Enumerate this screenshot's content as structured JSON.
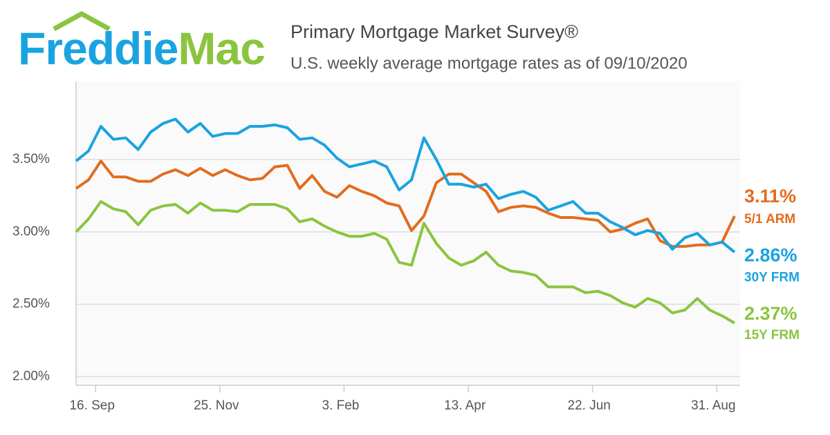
{
  "logo": {
    "first": "Freddie",
    "second": "Mac"
  },
  "chart_data": {
    "type": "line",
    "title": "Primary Mortgage Market Survey®",
    "subtitle": "U.S. weekly average mortgage rates as of 09/10/2020",
    "x": [
      0,
      1,
      2,
      3,
      4,
      5,
      6,
      7,
      8,
      9,
      10,
      11,
      12,
      13,
      14,
      15,
      16,
      17,
      18,
      19,
      20,
      21,
      22,
      23,
      24,
      25,
      26,
      27,
      28,
      29,
      30,
      31,
      32,
      33,
      34,
      35,
      36,
      37,
      38,
      39,
      40,
      41,
      42,
      43,
      44,
      45,
      46,
      47,
      48,
      49,
      50,
      51,
      52,
      53
    ],
    "xlim": [
      0,
      53
    ],
    "xticks": [
      {
        "value": 1.57,
        "label": "16. Sep"
      },
      {
        "value": 11.57,
        "label": "25. Nov"
      },
      {
        "value": 21.57,
        "label": "3. Feb"
      },
      {
        "value": 31.57,
        "label": "13. Apr"
      },
      {
        "value": 41.57,
        "label": "22. Jun"
      },
      {
        "value": 51.57,
        "label": "31. Aug"
      }
    ],
    "ylim": [
      1.94,
      4.04
    ],
    "yticks": [
      {
        "value": 2,
        "label": "2.00%"
      },
      {
        "value": 2.5,
        "label": "2.50%"
      },
      {
        "value": 3,
        "label": "3.00%"
      },
      {
        "value": 3.5,
        "label": "3.50%"
      }
    ],
    "grid": true,
    "series": [
      {
        "name": "5/1 ARM",
        "color": "#e36c1e",
        "values": [
          3.3,
          3.36,
          3.49,
          3.38,
          3.38,
          3.35,
          3.35,
          3.4,
          3.43,
          3.39,
          3.44,
          3.39,
          3.43,
          3.39,
          3.36,
          3.37,
          3.45,
          3.46,
          3.3,
          3.39,
          3.28,
          3.24,
          3.32,
          3.28,
          3.25,
          3.2,
          3.18,
          3.01,
          3.11,
          3.34,
          3.4,
          3.4,
          3.34,
          3.28,
          3.14,
          3.17,
          3.18,
          3.17,
          3.13,
          3.1,
          3.1,
          3.09,
          3.08,
          3.0,
          3.02,
          3.06,
          3.09,
          2.94,
          2.9,
          2.9,
          2.91,
          2.91,
          2.93,
          3.11
        ],
        "value_labels": [
          null,
          null,
          null,
          null,
          null,
          null,
          null,
          null,
          null,
          null,
          null,
          null,
          null,
          null,
          null,
          null,
          null,
          null,
          null,
          null,
          null,
          null,
          null,
          null,
          null,
          null,
          null,
          null,
          null,
          null,
          null,
          null,
          null,
          null,
          null,
          null,
          null,
          null,
          null,
          null,
          null,
          null,
          null,
          null,
          null,
          null,
          null,
          null,
          null,
          null,
          null,
          null,
          null,
          "3.11%"
        ]
      },
      {
        "name": "30Y FRM",
        "color": "#1aa3e0",
        "values": [
          3.49,
          3.56,
          3.73,
          3.64,
          3.65,
          3.57,
          3.69,
          3.75,
          3.78,
          3.69,
          3.75,
          3.66,
          3.68,
          3.68,
          3.73,
          3.73,
          3.74,
          3.72,
          3.64,
          3.65,
          3.6,
          3.51,
          3.45,
          3.47,
          3.49,
          3.45,
          3.29,
          3.36,
          3.65,
          3.5,
          3.33,
          3.33,
          3.31,
          3.33,
          3.23,
          3.26,
          3.28,
          3.24,
          3.15,
          3.18,
          3.21,
          3.13,
          3.13,
          3.07,
          3.03,
          2.98,
          3.01,
          2.99,
          2.88,
          2.96,
          2.99,
          2.91,
          2.93,
          2.86
        ],
        "value_labels": [
          null,
          null,
          null,
          null,
          null,
          null,
          null,
          null,
          null,
          null,
          null,
          null,
          null,
          null,
          null,
          null,
          null,
          null,
          null,
          null,
          null,
          null,
          null,
          null,
          null,
          null,
          null,
          null,
          null,
          null,
          null,
          null,
          null,
          null,
          null,
          null,
          null,
          null,
          null,
          null,
          null,
          null,
          null,
          null,
          null,
          null,
          null,
          null,
          null,
          null,
          null,
          null,
          null,
          "2.86%"
        ]
      },
      {
        "name": "15Y FRM",
        "color": "#8bc43f",
        "values": [
          3.0,
          3.09,
          3.21,
          3.16,
          3.14,
          3.05,
          3.15,
          3.18,
          3.19,
          3.13,
          3.2,
          3.15,
          3.15,
          3.14,
          3.19,
          3.19,
          3.19,
          3.16,
          3.07,
          3.09,
          3.04,
          3.0,
          2.97,
          2.97,
          2.99,
          2.95,
          2.79,
          2.77,
          3.06,
          2.92,
          2.82,
          2.77,
          2.8,
          2.86,
          2.77,
          2.73,
          2.72,
          2.7,
          2.62,
          2.62,
          2.62,
          2.58,
          2.59,
          2.56,
          2.51,
          2.48,
          2.54,
          2.51,
          2.44,
          2.46,
          2.54,
          2.46,
          2.42,
          2.37
        ],
        "value_labels": [
          null,
          null,
          null,
          null,
          null,
          null,
          null,
          null,
          null,
          null,
          null,
          null,
          null,
          null,
          null,
          null,
          null,
          null,
          null,
          null,
          null,
          null,
          null,
          null,
          null,
          null,
          null,
          null,
          null,
          null,
          null,
          null,
          null,
          null,
          null,
          null,
          null,
          null,
          null,
          null,
          null,
          null,
          null,
          null,
          null,
          null,
          null,
          null,
          null,
          null,
          null,
          null,
          null,
          "2.37%"
        ]
      }
    ]
  }
}
